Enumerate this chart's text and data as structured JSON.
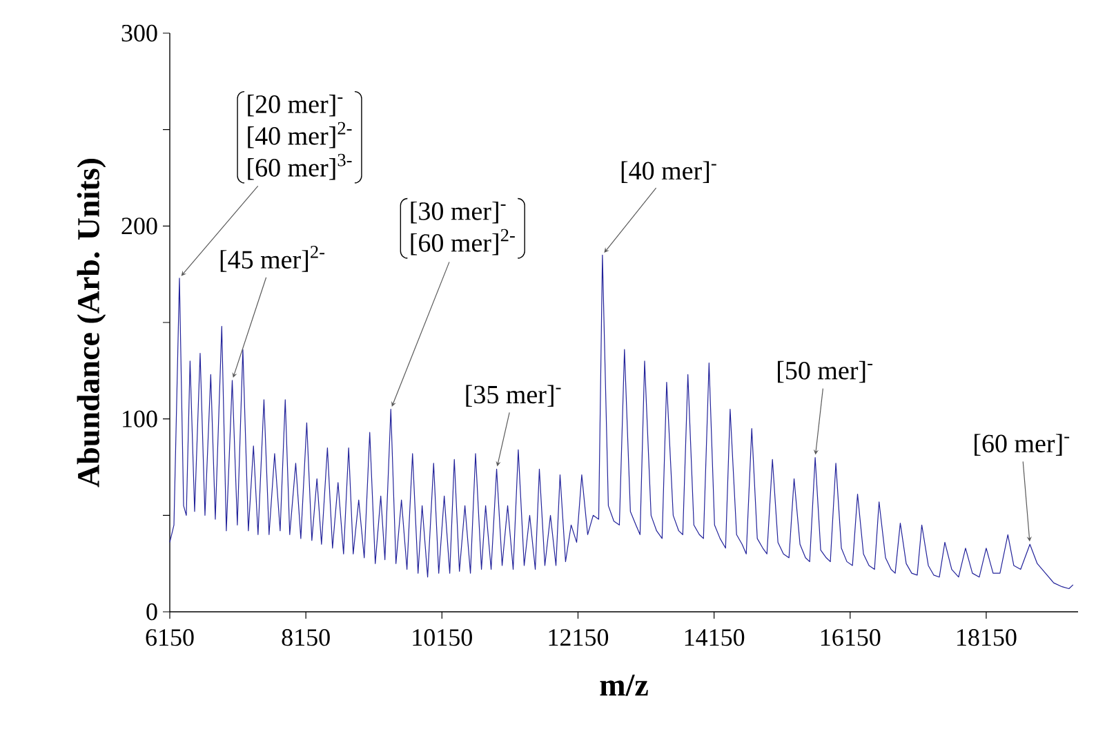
{
  "chart_data": {
    "type": "line",
    "xlabel": "m/z",
    "ylabel": "Abundance (Arb. Units)",
    "color": "#22229a",
    "xlim": [
      6150,
      19500
    ],
    "ylim": [
      0,
      300
    ],
    "xticks": [
      6150,
      8150,
      10150,
      12150,
      14150,
      16150,
      18150
    ],
    "yticks": [
      0,
      {
        "value": 50,
        "label": null
      },
      100,
      {
        "value": 150,
        "label": null
      },
      200,
      {
        "value": 250,
        "label": null
      },
      300
    ],
    "x": [
      6150,
      6211,
      6292,
      6353,
      6393,
      6448,
      6515,
      6596,
      6667,
      6752,
      6819,
      6914,
      6981,
      7068,
      7143,
      7224,
      7305,
      7380,
      7447,
      7534,
      7609,
      7691,
      7772,
      7847,
      7913,
      8001,
      8076,
      8163,
      8238,
      8313,
      8380,
      8467,
      8542,
      8623,
      8704,
      8779,
      8846,
      8927,
      9008,
      9089,
      9170,
      9251,
      9312,
      9399,
      9474,
      9555,
      9636,
      9718,
      9799,
      9859,
      9940,
      10028,
      10103,
      10184,
      10265,
      10332,
      10407,
      10488,
      10569,
      10644,
      10731,
      10792,
      10873,
      10954,
      11035,
      11116,
      11197,
      11272,
      11359,
      11440,
      11522,
      11582,
      11663,
      11745,
      11826,
      11886,
      11967,
      12049,
      12130,
      12205,
      12292,
      12373,
      12454,
      12509,
      12596,
      12677,
      12758,
      12833,
      12920,
      13001,
      13062,
      13129,
      13224,
      13305,
      13386,
      13453,
      13549,
      13630,
      13690,
      13765,
      13853,
      13934,
      13994,
      14076,
      14157,
      14238,
      14319,
      14386,
      14481,
      14562,
      14623,
      14704,
      14785,
      14866,
      14927,
      15008,
      15089,
      15170,
      15251,
      15326,
      15413,
      15494,
      15555,
      15636,
      15717,
      15799,
      15859,
      15940,
      16021,
      16102,
      16184,
      16259,
      16346,
      16427,
      16508,
      16575,
      16670,
      16751,
      16812,
      16887,
      16974,
      17055,
      17136,
      17203,
      17299,
      17380,
      17461,
      17542,
      17643,
      17744,
      17846,
      17947,
      18048,
      18150,
      18251,
      18352,
      18468,
      18555,
      18656,
      18792,
      18900,
      19021,
      19142,
      19265,
      19366,
      19427
    ],
    "values": [
      36,
      45,
      173,
      55,
      50,
      130,
      52,
      134,
      50,
      123,
      48,
      148,
      42,
      120,
      45,
      136,
      42,
      86,
      40,
      110,
      40,
      82,
      42,
      110,
      40,
      77,
      38,
      98,
      37,
      69,
      35,
      85,
      33,
      67,
      30,
      85,
      30,
      58,
      28,
      93,
      25,
      60,
      27,
      105,
      25,
      58,
      22,
      82,
      20,
      55,
      18,
      77,
      20,
      60,
      20,
      79,
      21,
      55,
      20,
      82,
      22,
      55,
      22,
      74,
      24,
      55,
      22,
      84,
      24,
      50,
      22,
      74,
      24,
      50,
      24,
      71,
      26,
      45,
      36,
      71,
      40,
      50,
      48,
      185,
      55,
      47,
      45,
      136,
      52,
      45,
      40,
      130,
      50,
      42,
      38,
      119,
      50,
      42,
      40,
      123,
      45,
      40,
      38,
      129,
      45,
      38,
      33,
      105,
      40,
      35,
      30,
      95,
      38,
      33,
      30,
      79,
      36,
      30,
      28,
      69,
      35,
      28,
      26,
      80,
      32,
      28,
      26,
      77,
      33,
      26,
      24,
      61,
      30,
      24,
      22,
      57,
      28,
      22,
      20,
      46,
      25,
      20,
      19,
      45,
      24,
      19,
      18,
      36,
      22,
      18,
      33,
      20,
      18,
      33,
      20,
      20,
      40,
      24,
      22,
      35,
      25,
      20,
      15,
      13,
      12,
      14
    ],
    "annotations": [
      "[20 mer]$^{-}$",
      "[40 mer]$^{2-}$",
      {
        "text": "[60 mer]$^{3-}$",
        "x": 6292,
        "y": 173
      },
      {
        "text": "[45 mer]$^{2-}$",
        "x": 7068,
        "y": 120
      },
      "[30 mer]$^{-}$",
      {
        "text": "[60 mer]$^{2-}$",
        "x": 9399,
        "y": 105
      },
      {
        "text": "[35 mer]$^{-}$",
        "x": 10954,
        "y": 74
      },
      {
        "text": "[40 mer]$^{-}$",
        "x": 12509,
        "y": 185
      },
      {
        "text": "[50 mer]$^{-}$",
        "x": 15636,
        "y": 80
      },
      {
        "text": "[60 mer]$^{-}$",
        "x": 18792,
        "y": 35
      }
    ]
  }
}
